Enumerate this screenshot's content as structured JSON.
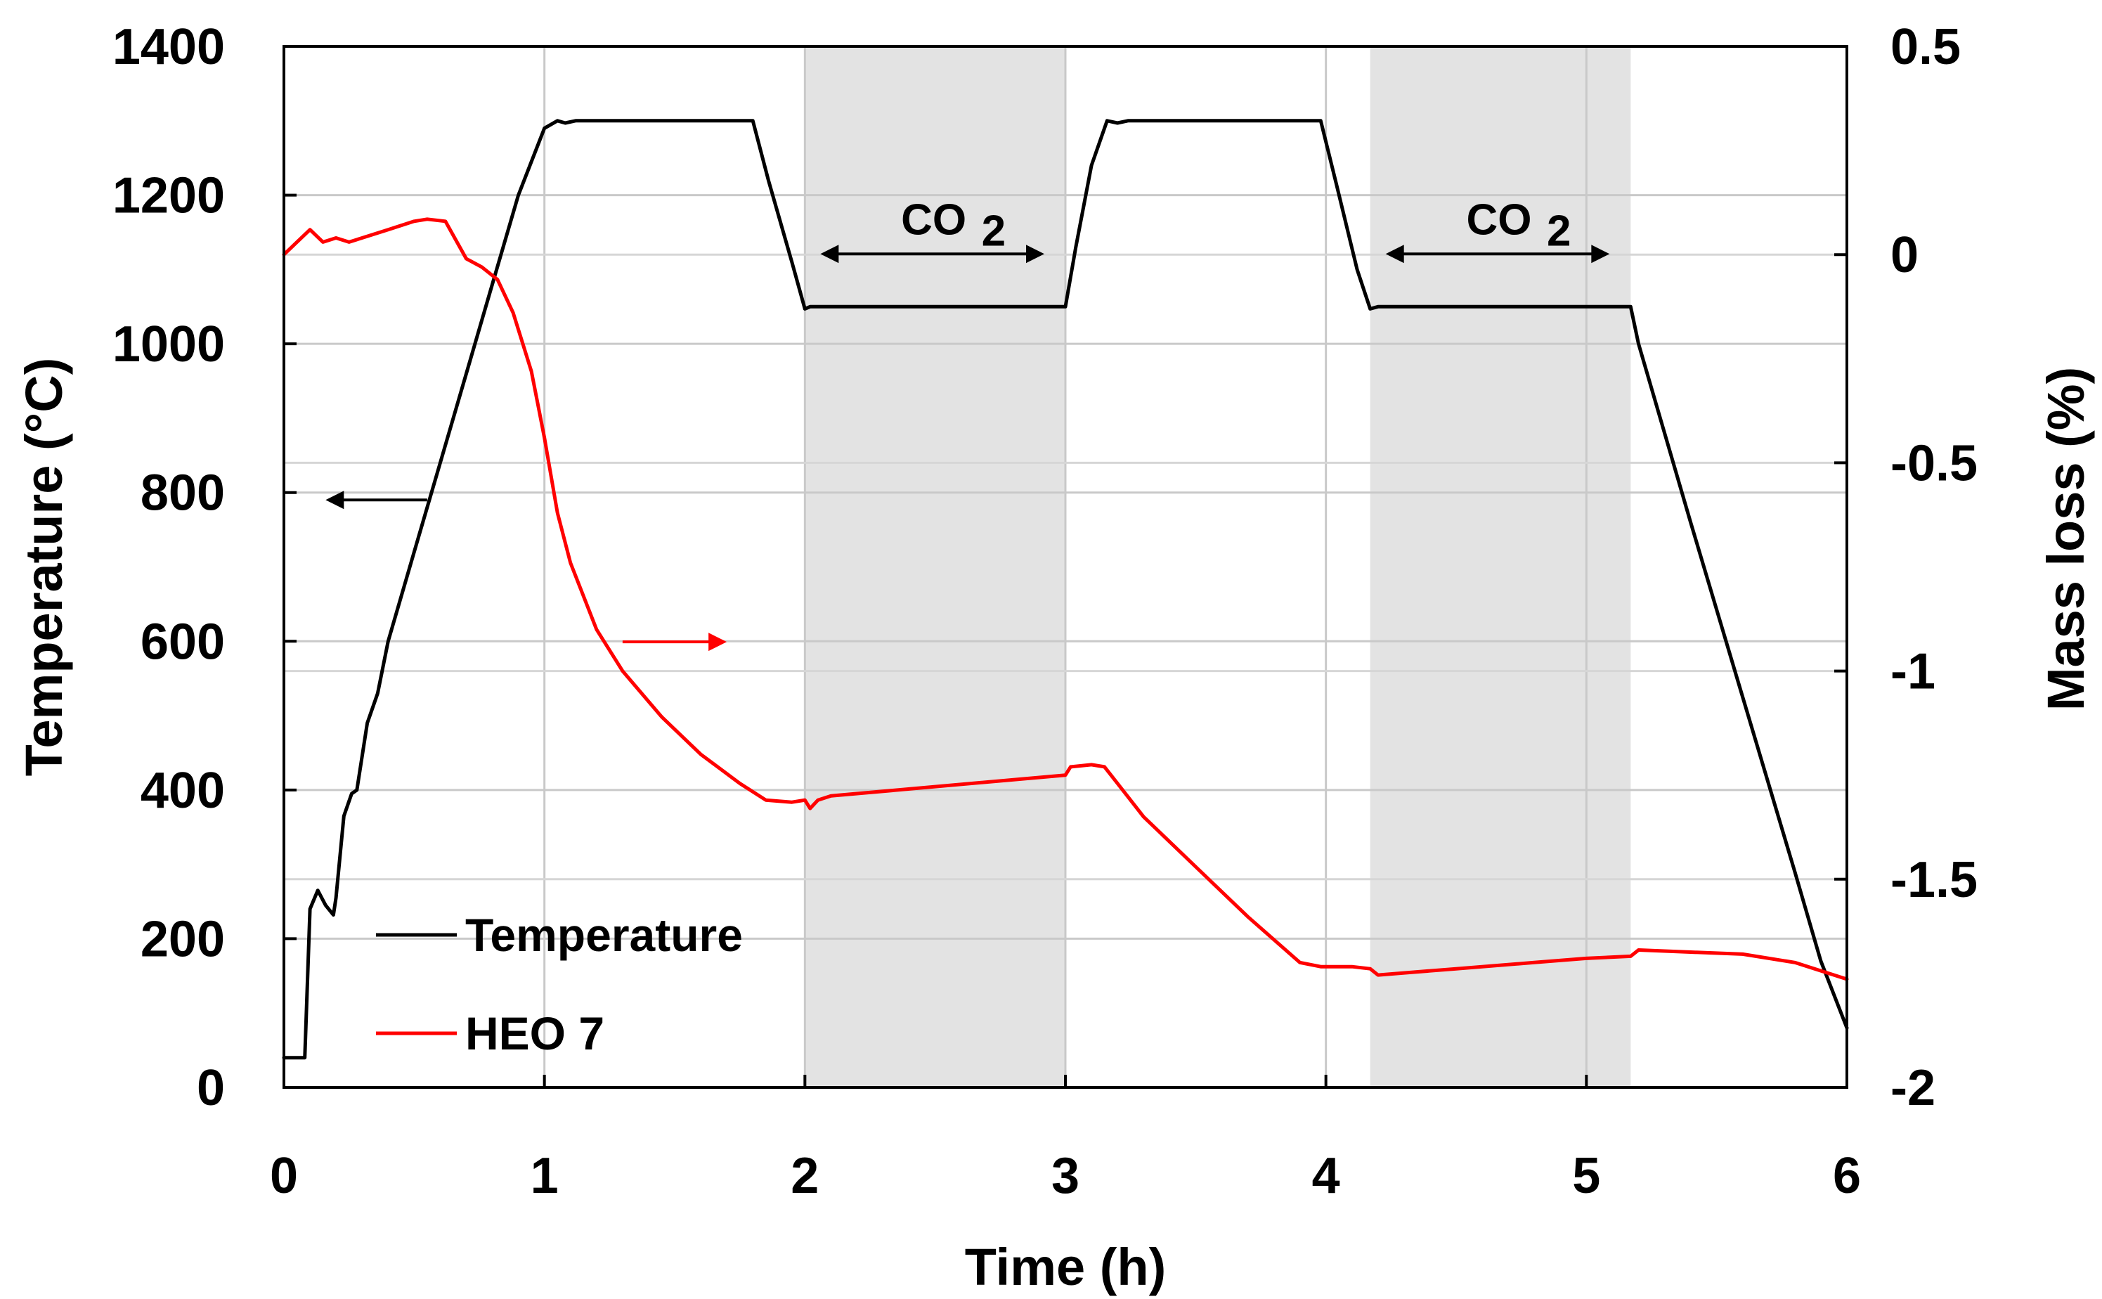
{
  "chart_data": {
    "type": "line",
    "xlabel": "Time (h)",
    "ylabel": "Temperature (°C)",
    "y2label": "Mass loss (%)",
    "xlim": [
      0,
      6
    ],
    "ylim": [
      0,
      1400
    ],
    "y2lim": [
      -2,
      0.5
    ],
    "x_ticks": [
      "0",
      "1",
      "2",
      "3",
      "4",
      "5",
      "6"
    ],
    "y_ticks": [
      "0",
      "200",
      "400",
      "600",
      "800",
      "1000",
      "1200",
      "1400"
    ],
    "y2_ticks": [
      "-2",
      "-1.5",
      "-1",
      "-0.5",
      "0",
      "0.5"
    ],
    "grid": true,
    "legend_position": "bottom-left",
    "shaded_regions": [
      {
        "label": "CO",
        "subscript": "2",
        "x_start": 2.0,
        "x_end": 3.0
      },
      {
        "label": "CO",
        "subscript": "2",
        "x_start": 4.17,
        "x_end": 5.17
      }
    ],
    "series": [
      {
        "name": "Temperature",
        "axis": "left",
        "color": "#000000",
        "x": [
          0,
          0.08,
          0.1,
          0.13,
          0.16,
          0.19,
          0.2,
          0.23,
          0.26,
          0.28,
          0.32,
          0.36,
          0.4,
          0.5,
          0.6,
          0.7,
          0.8,
          0.9,
          1.0,
          1.05,
          1.08,
          1.12,
          1.8,
          1.86,
          1.95,
          2.0,
          2.02,
          2.06,
          3.0,
          3.04,
          3.1,
          3.16,
          3.2,
          3.24,
          3.98,
          4.04,
          4.12,
          4.17,
          4.2,
          4.25,
          5.17,
          5.2,
          5.4,
          5.6,
          5.8,
          5.9,
          6.0
        ],
        "values": [
          40,
          40,
          240,
          265,
          245,
          232,
          255,
          365,
          395,
          400,
          490,
          530,
          600,
          720,
          840,
          960,
          1080,
          1200,
          1290,
          1300,
          1297,
          1300,
          1300,
          1220,
          1110,
          1047,
          1050,
          1050,
          1050,
          1130,
          1240,
          1300,
          1297,
          1300,
          1300,
          1215,
          1100,
          1047,
          1050,
          1050,
          1050,
          1000,
          760,
          525,
          290,
          170,
          80
        ]
      },
      {
        "name": "HEO 7",
        "axis": "right",
        "color": "#ff0000",
        "x": [
          0,
          0.05,
          0.1,
          0.15,
          0.2,
          0.25,
          0.3,
          0.4,
          0.5,
          0.55,
          0.62,
          0.7,
          0.76,
          0.82,
          0.88,
          0.95,
          1.0,
          1.05,
          1.1,
          1.2,
          1.3,
          1.45,
          1.6,
          1.75,
          1.85,
          1.95,
          2.0,
          2.02,
          2.05,
          2.1,
          3.0,
          3.02,
          3.1,
          3.15,
          3.2,
          3.3,
          3.5,
          3.7,
          3.9,
          3.98,
          4.1,
          4.17,
          4.2,
          4.3,
          4.5,
          4.8,
          5.0,
          5.17,
          5.2,
          5.4,
          5.6,
          5.8,
          6.0
        ],
        "values": [
          0.0,
          0.03,
          0.06,
          0.03,
          0.04,
          0.03,
          0.04,
          0.06,
          0.08,
          0.085,
          0.08,
          -0.01,
          -0.03,
          -0.06,
          -0.14,
          -0.28,
          -0.44,
          -0.62,
          -0.74,
          -0.9,
          -1.0,
          -1.11,
          -1.2,
          -1.27,
          -1.31,
          -1.315,
          -1.31,
          -1.33,
          -1.31,
          -1.3,
          -1.25,
          -1.23,
          -1.225,
          -1.23,
          -1.27,
          -1.35,
          -1.47,
          -1.59,
          -1.7,
          -1.71,
          -1.71,
          -1.715,
          -1.73,
          -1.725,
          -1.715,
          -1.7,
          -1.69,
          -1.685,
          -1.67,
          -1.675,
          -1.68,
          -1.7,
          -1.74
        ]
      }
    ],
    "annotations": [
      {
        "type": "arrow",
        "direction": "left",
        "x_start": 0.55,
        "x_end": 0.16,
        "y": 790,
        "axis": "left",
        "color": "#000000",
        "meaning": "points to left axis"
      },
      {
        "type": "arrow",
        "direction": "right",
        "x_start": 1.3,
        "x_end": 1.7,
        "y": -0.93,
        "axis": "right",
        "color": "#ff0000",
        "meaning": "points to right axis"
      }
    ]
  },
  "legend": {
    "items": [
      {
        "label": "Temperature",
        "color": "#000000"
      },
      {
        "label": "HEO 7",
        "color": "#ff0000"
      }
    ]
  }
}
